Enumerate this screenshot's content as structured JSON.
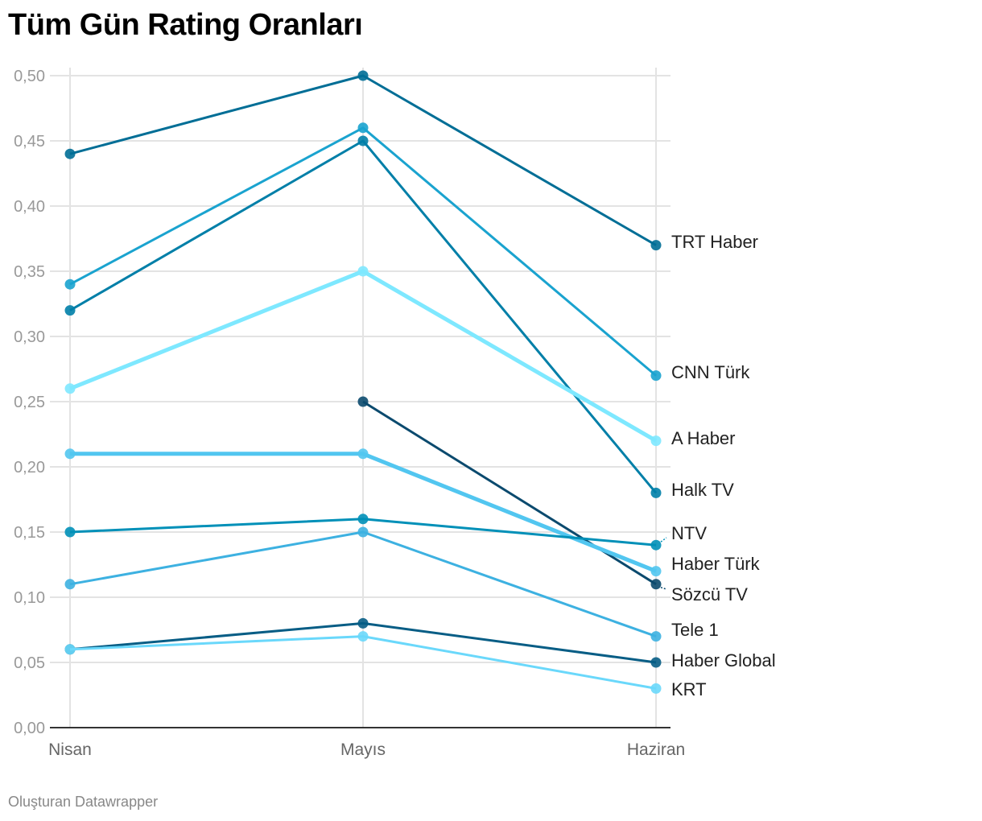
{
  "title": "Tüm Gün Rating Oranları",
  "credit": "Oluşturan Datawrapper",
  "chart_data": {
    "type": "line",
    "title": "Tüm Gün Rating Oranları",
    "x": [
      "Nisan",
      "Mayıs",
      "Haziran"
    ],
    "ylim": [
      0,
      0.5
    ],
    "yticks": [
      "0,00",
      "0,05",
      "0,10",
      "0,15",
      "0,20",
      "0,25",
      "0,30",
      "0,35",
      "0,40",
      "0,45",
      "0,50"
    ],
    "grid": true,
    "legend": "direct labels right",
    "series": [
      {
        "name": "TRT Haber",
        "values": [
          0.44,
          0.5,
          0.37
        ],
        "color": "#006e96"
      },
      {
        "name": "CNN Türk",
        "values": [
          0.34,
          0.46,
          0.27
        ],
        "color": "#1aa3cf"
      },
      {
        "name": "Halk TV",
        "values": [
          0.32,
          0.45,
          0.18
        ],
        "color": "#007fa8"
      },
      {
        "name": "A Haber",
        "values": [
          0.26,
          0.35,
          0.22
        ],
        "color": "#7ee8ff",
        "thick": true
      },
      {
        "name": "Sözcü TV",
        "values": [
          null,
          0.25,
          0.11
        ],
        "color": "#0b4a6e"
      },
      {
        "name": "Haber Türk",
        "values": [
          0.21,
          0.21,
          0.12
        ],
        "color": "#52c6f0",
        "thick": true
      },
      {
        "name": "NTV",
        "values": [
          0.15,
          0.16,
          0.14
        ],
        "color": "#0090b8"
      },
      {
        "name": "Tele 1",
        "values": [
          0.11,
          0.15,
          0.07
        ],
        "color": "#3db1e1"
      },
      {
        "name": "Haber Global",
        "values": [
          0.06,
          0.08,
          0.05
        ],
        "color": "#075d85"
      },
      {
        "name": "KRT",
        "values": [
          0.06,
          0.07,
          0.03
        ],
        "color": "#6ad8fb"
      }
    ]
  }
}
